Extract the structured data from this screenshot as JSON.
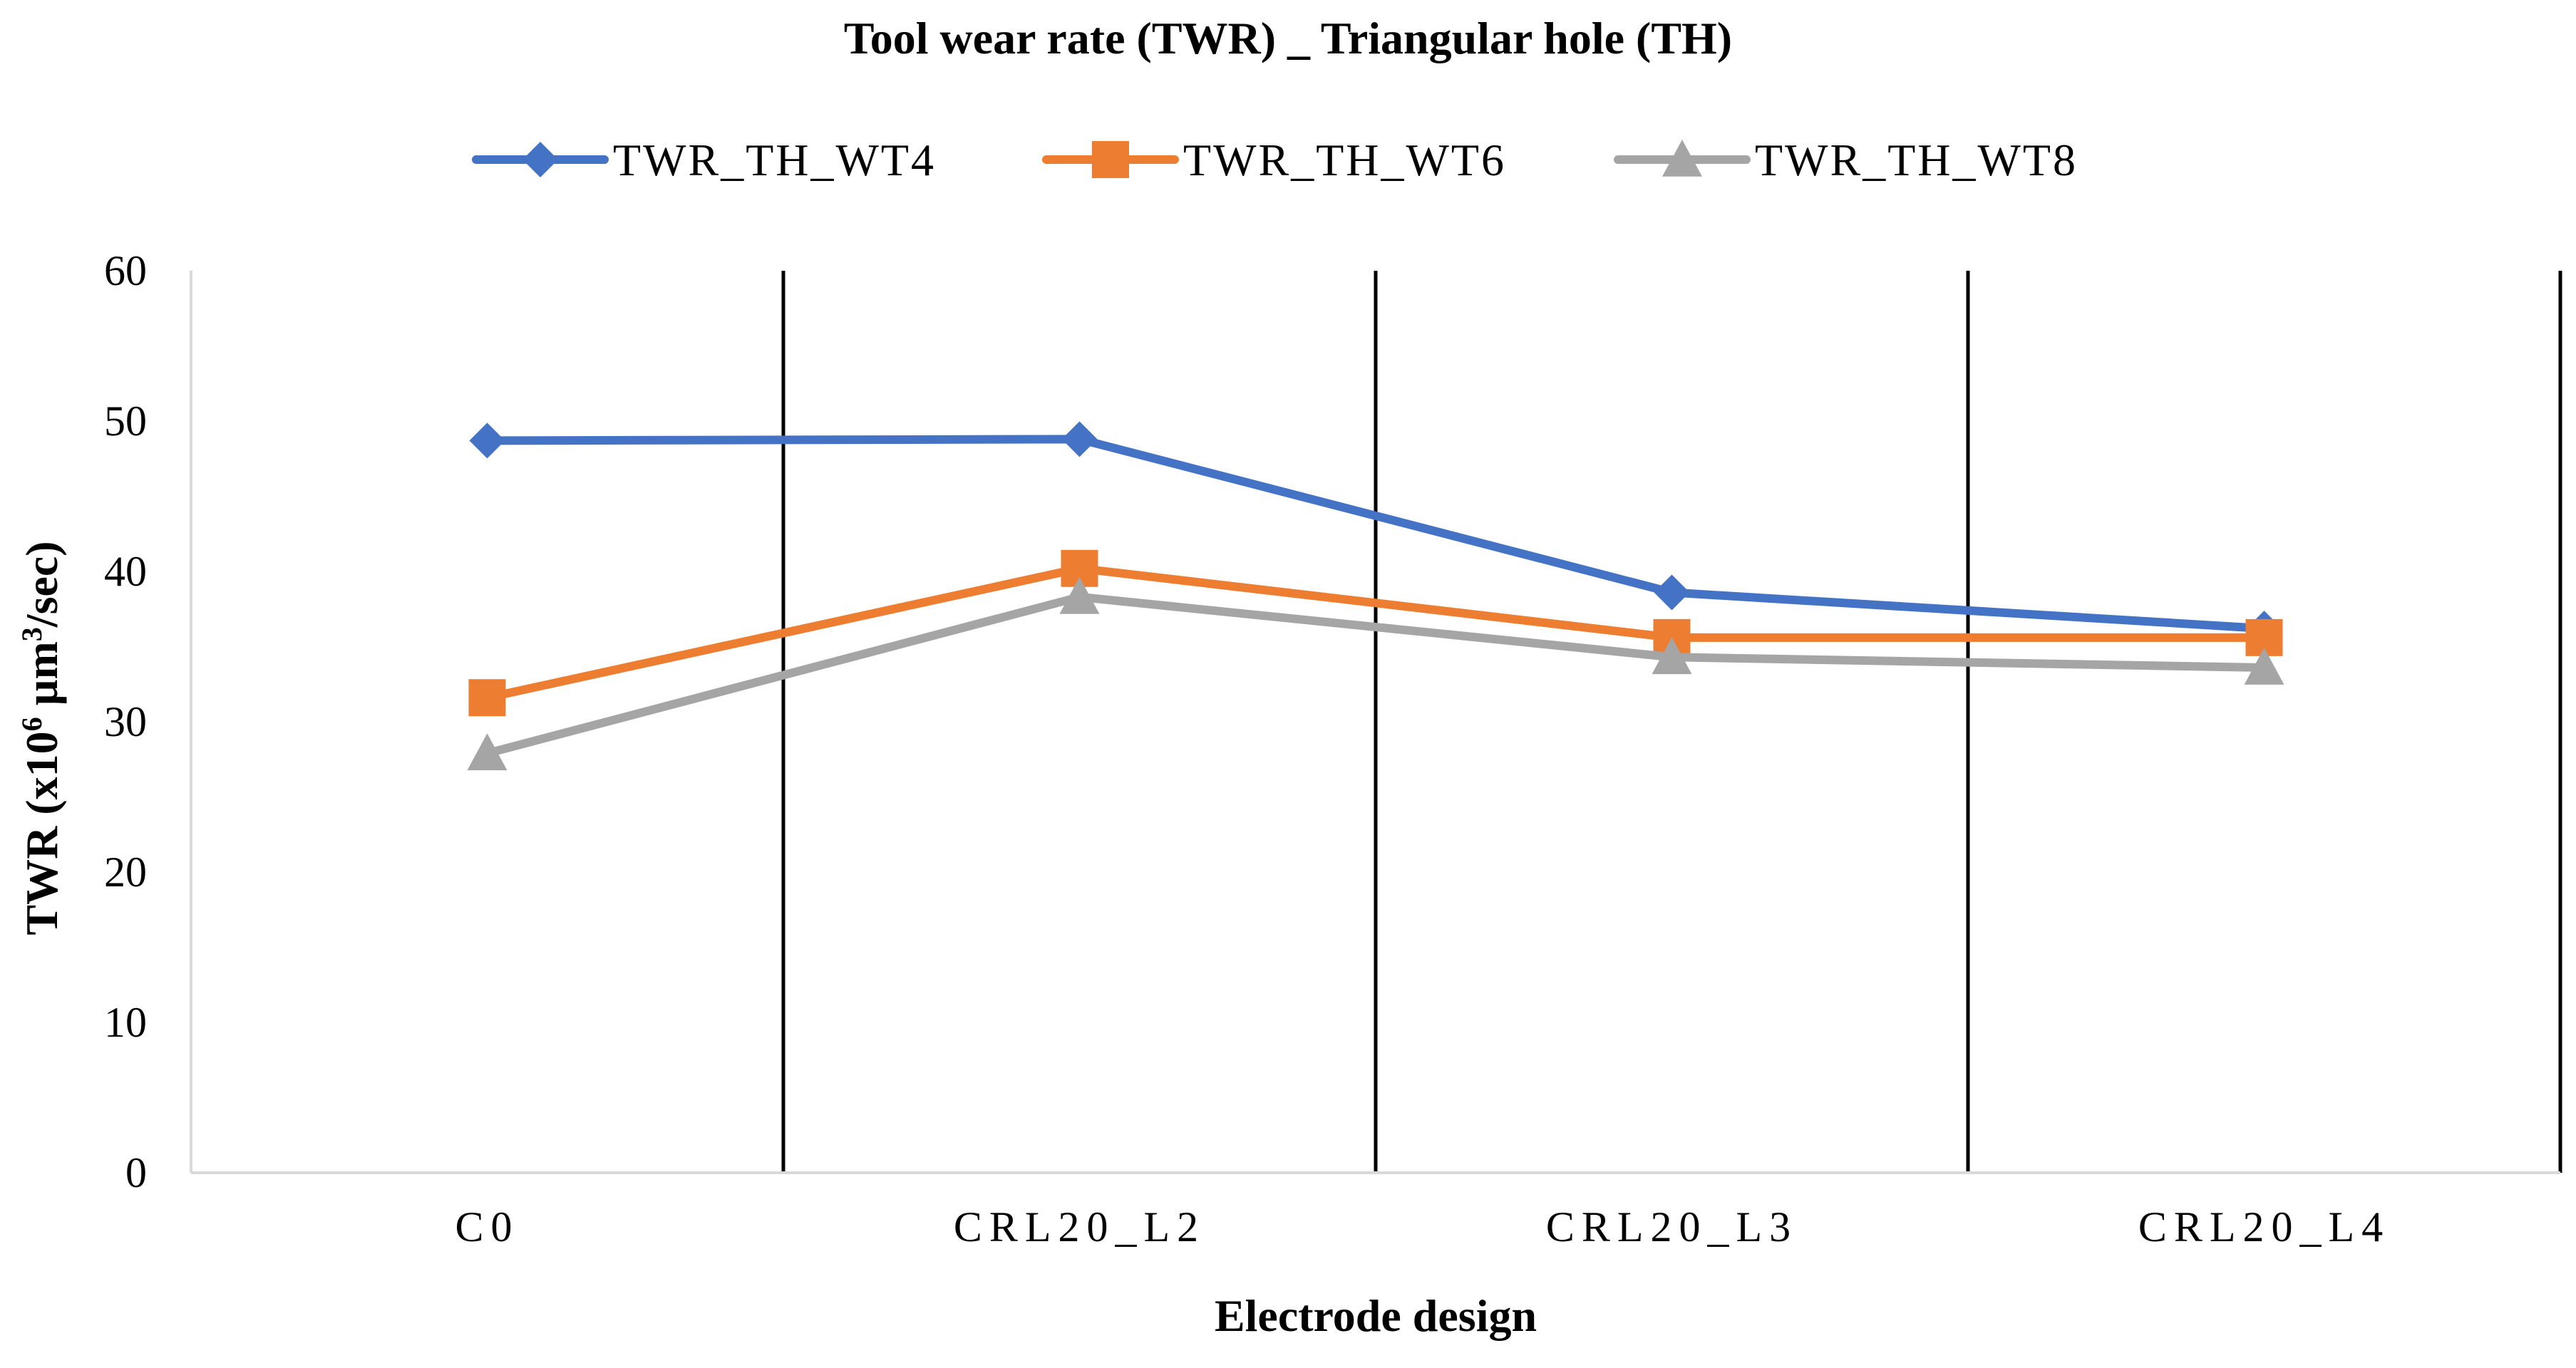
{
  "chart_data": {
    "type": "line",
    "title": "Tool wear rate (TWR) _ Triangular hole (TH)",
    "xlabel": "Electrode design",
    "ylabel": {
      "prefix": "TWR (x10",
      "sup1": "6",
      "middle": " µm",
      "sup2": "3",
      "suffix": "/sec)"
    },
    "categories": [
      "C0",
      "CRL20_L2",
      "CRL20_L3",
      "CRL20_L4"
    ],
    "ylim": [
      0,
      60
    ],
    "yticks": [
      0,
      10,
      20,
      30,
      40,
      50,
      60
    ],
    "grid": false,
    "category_separators": true,
    "legend_position": "top",
    "series": [
      {
        "name": "TWR_TH_WT4",
        "values": [
          48.7,
          48.8,
          38.6,
          36.2
        ],
        "color": "#4472C4",
        "marker": "diamond"
      },
      {
        "name": "TWR_TH_WT6",
        "values": [
          31.6,
          40.2,
          35.6,
          35.6
        ],
        "color": "#ED7D31",
        "marker": "square"
      },
      {
        "name": "TWR_TH_WT8",
        "values": [
          27.9,
          38.3,
          34.3,
          33.6
        ],
        "color": "#A5A5A5",
        "marker": "triangle"
      }
    ]
  }
}
